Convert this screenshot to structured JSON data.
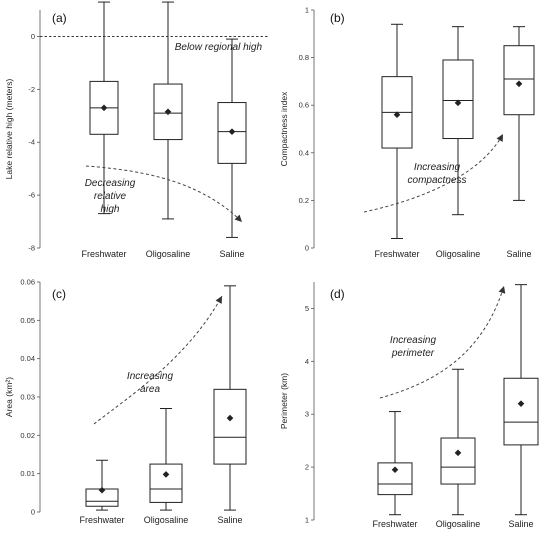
{
  "chart_data": [
    {
      "type": "box",
      "panel_label": "(a)",
      "ylabel": "Lake relative high (meters)",
      "ylim": [
        -8,
        1
      ],
      "yticks": [
        0,
        -2,
        -4,
        -6,
        -8
      ],
      "ytick_labels": [
        "0",
        "-2",
        "-4",
        "-6",
        "-8"
      ],
      "categories": [
        "Freshwater",
        "Oligosaline",
        "Saline"
      ],
      "boxes": [
        {
          "min": -6.7,
          "q1": -3.7,
          "median": -2.7,
          "q3": -1.7,
          "max": 1.3,
          "mean": -2.7
        },
        {
          "min": -6.9,
          "q1": -3.9,
          "median": -2.9,
          "q3": -1.8,
          "max": 1.3,
          "mean": -2.85
        },
        {
          "min": -7.6,
          "q1": -4.8,
          "median": -3.6,
          "q3": -2.5,
          "max": -0.1,
          "mean": -3.6
        }
      ],
      "reference_line": {
        "y": 0,
        "label": "Below regional high"
      },
      "annotation": {
        "lines": [
          "Decreasing",
          "relative",
          "high"
        ],
        "trend": "decreasing"
      }
    },
    {
      "type": "box",
      "panel_label": "(b)",
      "ylabel": "Compactness index",
      "ylim": [
        0,
        1
      ],
      "yticks": [
        0,
        0.2,
        0.4,
        0.6,
        0.8,
        1
      ],
      "ytick_labels": [
        "0",
        "0.2",
        "0.4",
        "0.6",
        "0.8",
        "1"
      ],
      "categories": [
        "Freshwater",
        "Oligosaline",
        "Saline"
      ],
      "boxes": [
        {
          "min": 0.04,
          "q1": 0.42,
          "median": 0.57,
          "q3": 0.72,
          "max": 0.94,
          "mean": 0.56
        },
        {
          "min": 0.14,
          "q1": 0.46,
          "median": 0.62,
          "q3": 0.79,
          "max": 0.93,
          "mean": 0.61
        },
        {
          "min": 0.2,
          "q1": 0.56,
          "median": 0.71,
          "q3": 0.85,
          "max": 0.93,
          "mean": 0.69
        }
      ],
      "annotation": {
        "lines": [
          "Increasing",
          "compactness"
        ],
        "trend": "increasing"
      }
    },
    {
      "type": "box",
      "panel_label": "(c)",
      "ylabel": "Area (km²)",
      "ylim": [
        0,
        0.06
      ],
      "yticks": [
        0,
        0.01,
        0.02,
        0.03,
        0.04,
        0.05,
        0.06
      ],
      "ytick_labels": [
        "0",
        "0.01",
        "0.02",
        "0.03",
        "0.04",
        "0.05",
        "0.06"
      ],
      "categories": [
        "Freshwater",
        "Oligosaline",
        "Saline"
      ],
      "boxes": [
        {
          "min": 0.0005,
          "q1": 0.0015,
          "median": 0.0028,
          "q3": 0.006,
          "max": 0.0135,
          "mean": 0.0057
        },
        {
          "min": 0.0005,
          "q1": 0.0025,
          "median": 0.006,
          "q3": 0.0125,
          "max": 0.027,
          "mean": 0.0098
        },
        {
          "min": 0.0005,
          "q1": 0.0125,
          "median": 0.0195,
          "q3": 0.032,
          "max": 0.059,
          "mean": 0.0245
        }
      ],
      "annotation": {
        "lines": [
          "Increasing",
          "area"
        ],
        "trend": "increasing"
      }
    },
    {
      "type": "box",
      "panel_label": "(d)",
      "ylabel": "Perimeter (km)",
      "ylim": [
        1,
        5.5
      ],
      "yticks": [
        1,
        2,
        3,
        4,
        5
      ],
      "ytick_labels": [
        "1",
        "2",
        "3",
        "4",
        "5"
      ],
      "categories": [
        "Freshwater",
        "Oligosaline",
        "Saline"
      ],
      "boxes": [
        {
          "min": 1.1,
          "q1": 1.48,
          "median": 1.68,
          "q3": 2.08,
          "max": 3.05,
          "mean": 1.95
        },
        {
          "min": 1.1,
          "q1": 1.68,
          "median": 2.0,
          "q3": 2.55,
          "max": 3.85,
          "mean": 2.27
        },
        {
          "min": 1.1,
          "q1": 2.42,
          "median": 2.85,
          "q3": 3.68,
          "max": 5.45,
          "mean": 3.2
        }
      ],
      "annotation": {
        "lines": [
          "Increasing",
          "perimeter"
        ],
        "trend": "increasing"
      }
    }
  ]
}
